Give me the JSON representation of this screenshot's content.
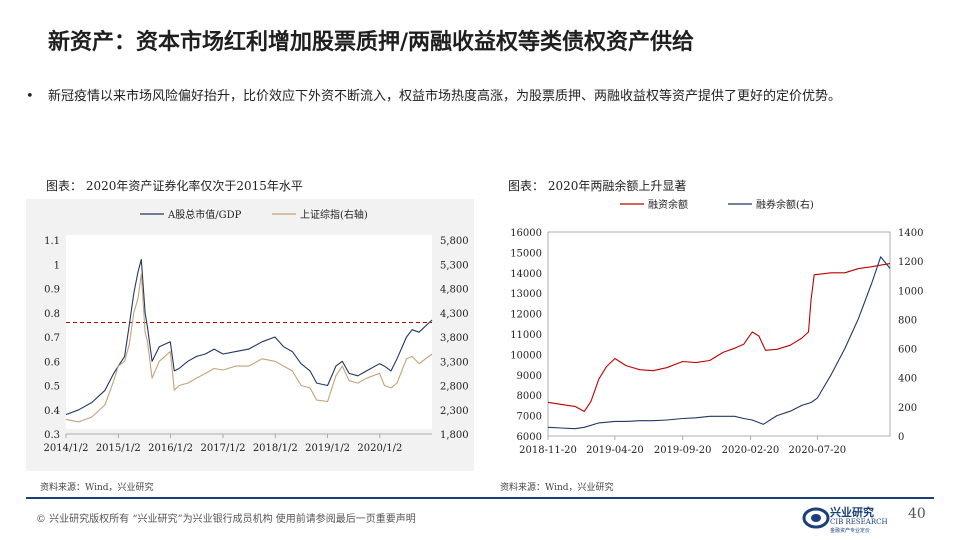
{
  "title": "新资产：资本市场红利增加股票质押/两融收益权等类债权资产供给",
  "bullet": "新冠疫情以来市场风险偏好抬升，比价效应下外资不断流入，权益市场热度高涨，为股票质押、两融收益权等资产提供了更好的定价优势。",
  "bullet_symbol": "•",
  "footer": {
    "copyright": "©  兴业研究版权所有   “兴业研究”为兴业银行成员机构   使用前请参阅最后一页重要声明",
    "page": "40",
    "logo_cn": "兴业研究",
    "logo_en": "CIB RESEARCH",
    "logo_tag": "金融资产专业定价"
  },
  "colors": {
    "navy": "#1f3864",
    "tan": "#c4a27a",
    "red": "#c00000",
    "dashed": "#c00000",
    "footer_line": "#1a3f7a"
  },
  "chart_data": [
    {
      "type": "line",
      "caption": "图表：  2020年资产证券化率仅次于2015年水平",
      "source": "资料来源：Wind，兴业研究",
      "x_ticks": [
        "2014/1/2",
        "2015/1/2",
        "2016/1/2",
        "2017/1/2",
        "2018/1/2",
        "2019/1/2",
        "2020/1/2"
      ],
      "y_left_ticks": [
        "0.3",
        "0.4",
        "0.5",
        "0.6",
        "0.7",
        "0.8",
        "0.9",
        "1",
        "1.1"
      ],
      "y_right_ticks": [
        "1,800",
        "2,300",
        "2,800",
        "3,300",
        "3,800",
        "4,300",
        "4,800",
        "5,300",
        "5,800"
      ],
      "ylim_left": [
        0.3,
        1.1
      ],
      "ylim_right": [
        1800,
        5800
      ],
      "xlim": [
        "2014-01-02",
        "2020-12-31"
      ],
      "reference_line": 0.76,
      "legend_position": "top",
      "series": [
        {
          "name": "A股总市值/GDP",
          "axis": "left",
          "x": [
            "2014-01-02",
            "2014-04-01",
            "2014-07-01",
            "2014-10-01",
            "2014-12-01",
            "2015-01-02",
            "2015-02-15",
            "2015-03-20",
            "2015-04-20",
            "2015-05-20",
            "2015-06-12",
            "2015-07-08",
            "2015-07-25",
            "2015-08-26",
            "2015-10-15",
            "2015-12-31",
            "2016-01-28",
            "2016-03-01",
            "2016-05-01",
            "2016-07-01",
            "2016-09-01",
            "2016-11-01",
            "2017-01-02",
            "2017-04-01",
            "2017-07-01",
            "2017-10-01",
            "2017-12-31",
            "2018-03-01",
            "2018-05-01",
            "2018-07-01",
            "2018-09-01",
            "2018-10-18",
            "2019-01-02",
            "2019-03-01",
            "2019-04-15",
            "2019-06-01",
            "2019-08-01",
            "2019-10-01",
            "2019-12-31",
            "2020-02-03",
            "2020-03-20",
            "2020-05-01",
            "2020-07-06",
            "2020-08-15",
            "2020-10-01",
            "2020-12-31"
          ],
          "values": [
            0.38,
            0.4,
            0.43,
            0.48,
            0.55,
            0.58,
            0.62,
            0.75,
            0.88,
            0.97,
            1.02,
            0.8,
            0.74,
            0.6,
            0.66,
            0.68,
            0.56,
            0.57,
            0.6,
            0.62,
            0.63,
            0.65,
            0.63,
            0.64,
            0.65,
            0.68,
            0.7,
            0.66,
            0.64,
            0.59,
            0.56,
            0.51,
            0.5,
            0.58,
            0.6,
            0.55,
            0.54,
            0.56,
            0.59,
            0.58,
            0.56,
            0.61,
            0.7,
            0.73,
            0.72,
            0.77
          ]
        },
        {
          "name": "上证综指(右轴)",
          "axis": "right",
          "x": [
            "2014-01-02",
            "2014-04-01",
            "2014-07-01",
            "2014-10-01",
            "2014-12-01",
            "2015-01-02",
            "2015-02-15",
            "2015-03-20",
            "2015-04-20",
            "2015-05-20",
            "2015-06-12",
            "2015-07-08",
            "2015-07-25",
            "2015-08-26",
            "2015-10-15",
            "2015-12-31",
            "2016-01-28",
            "2016-03-01",
            "2016-05-01",
            "2016-07-01",
            "2016-09-01",
            "2016-11-01",
            "2017-01-02",
            "2017-04-01",
            "2017-07-01",
            "2017-10-01",
            "2017-12-31",
            "2018-03-01",
            "2018-05-01",
            "2018-07-01",
            "2018-09-01",
            "2018-10-18",
            "2019-01-02",
            "2019-03-01",
            "2019-04-15",
            "2019-06-01",
            "2019-08-01",
            "2019-10-01",
            "2019-12-31",
            "2020-02-03",
            "2020-03-20",
            "2020-05-01",
            "2020-07-06",
            "2020-08-15",
            "2020-10-01",
            "2020-12-31"
          ],
          "values": [
            2100,
            2050,
            2150,
            2400,
            2900,
            3200,
            3300,
            3650,
            4300,
            4600,
            5100,
            3900,
            3700,
            2950,
            3300,
            3500,
            2700,
            2800,
            2850,
            2950,
            3050,
            3150,
            3120,
            3200,
            3200,
            3350,
            3300,
            3200,
            3100,
            2800,
            2750,
            2500,
            2470,
            3000,
            3200,
            2900,
            2850,
            2950,
            3050,
            2800,
            2750,
            2850,
            3350,
            3400,
            3250,
            3450
          ]
        }
      ]
    },
    {
      "type": "line",
      "caption": "图表：  2020年两融余额上升显著",
      "source": "资料来源：Wind，兴业研究",
      "x_ticks": [
        "2018-11-20",
        "2019-04-20",
        "2019-09-20",
        "2020-02-20",
        "2020-07-20"
      ],
      "y_left_ticks": [
        "6000",
        "7000",
        "8000",
        "9000",
        "10000",
        "11000",
        "12000",
        "13000",
        "14000",
        "15000",
        "16000"
      ],
      "y_right_ticks": [
        "0",
        "200",
        "400",
        "600",
        "800",
        "1000",
        "1200",
        "1400"
      ],
      "ylim_left": [
        6000,
        16000
      ],
      "ylim_right": [
        0,
        1400
      ],
      "xlim": [
        "2018-11-20",
        "2020-12-31"
      ],
      "legend_position": "top",
      "series": [
        {
          "name": "融资余额",
          "axis": "left",
          "x": [
            "2018-11-20",
            "2018-12-20",
            "2019-01-20",
            "2019-02-10",
            "2019-02-25",
            "2019-03-15",
            "2019-04-01",
            "2019-04-20",
            "2019-05-15",
            "2019-06-15",
            "2019-07-15",
            "2019-08-15",
            "2019-09-20",
            "2019-10-20",
            "2019-11-20",
            "2019-12-20",
            "2020-01-15",
            "2020-02-05",
            "2020-02-24",
            "2020-03-10",
            "2020-03-25",
            "2020-04-20",
            "2020-05-20",
            "2020-06-15",
            "2020-06-30",
            "2020-07-06",
            "2020-07-13",
            "2020-08-20",
            "2020-09-20",
            "2020-10-20",
            "2020-11-20",
            "2020-12-31"
          ],
          "values": [
            7650,
            7550,
            7450,
            7200,
            7700,
            8800,
            9400,
            9800,
            9450,
            9250,
            9200,
            9350,
            9650,
            9600,
            9700,
            10100,
            10300,
            10500,
            11100,
            10900,
            10200,
            10250,
            10450,
            10800,
            11100,
            12700,
            13900,
            14000,
            14000,
            14200,
            14300,
            14450
          ]
        },
        {
          "name": "融券余额(右)",
          "axis": "right",
          "x": [
            "2018-11-20",
            "2018-12-20",
            "2019-01-20",
            "2019-02-10",
            "2019-03-15",
            "2019-04-20",
            "2019-05-15",
            "2019-06-15",
            "2019-07-15",
            "2019-08-15",
            "2019-09-20",
            "2019-10-20",
            "2019-11-20",
            "2019-12-20",
            "2020-01-15",
            "2020-02-05",
            "2020-02-24",
            "2020-03-20",
            "2020-04-20",
            "2020-05-20",
            "2020-06-15",
            "2020-07-06",
            "2020-07-20",
            "2020-08-20",
            "2020-09-20",
            "2020-10-20",
            "2020-11-20",
            "2020-12-10",
            "2020-12-31"
          ],
          "values": [
            60,
            55,
            50,
            60,
            90,
            100,
            100,
            105,
            105,
            110,
            120,
            125,
            135,
            135,
            135,
            120,
            110,
            80,
            140,
            170,
            210,
            230,
            260,
            420,
            600,
            800,
            1050,
            1230,
            1150
          ]
        }
      ]
    }
  ]
}
